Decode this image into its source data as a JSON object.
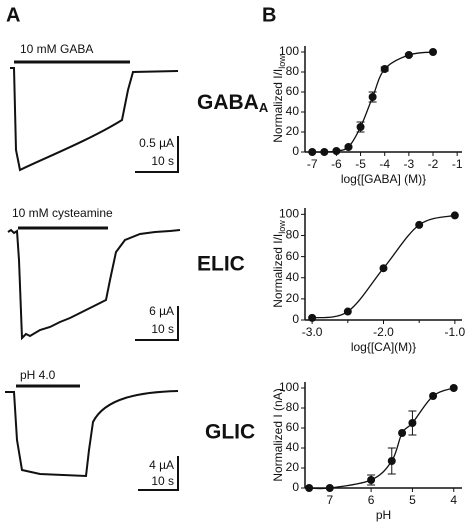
{
  "panels": {
    "a": "A",
    "b": "B"
  },
  "traces": [
    {
      "stimulus": "10 mM GABA",
      "amp": "0.5 µA",
      "time": "10 s",
      "receptor": "GABA",
      "receptor_sub": "A"
    },
    {
      "stimulus": "10 mM cysteamine",
      "amp": "6 µA",
      "time": "10 s",
      "receptor": "ELIC"
    },
    {
      "stimulus": "pH 4.0",
      "amp": "4 µA",
      "time": "10 s",
      "receptor": "GLIC"
    }
  ],
  "chart_data": [
    {
      "type": "scatter",
      "xlabel": "log{[GABA] (M)}",
      "ylabel": "Normalized I/I",
      "ylabel_sub": "low",
      "x": [
        -7,
        -6.5,
        -6,
        -5.5,
        -5,
        -4.5,
        -4,
        -3,
        -2
      ],
      "values": [
        0,
        0,
        1,
        5,
        25,
        55,
        83,
        97,
        100
      ],
      "errors": [
        0,
        0,
        0,
        1,
        5,
        5,
        2,
        1,
        0
      ],
      "xlim": [
        -7.3,
        -0.8
      ],
      "ylim": [
        0,
        106
      ],
      "xticks": [
        -7,
        -6,
        -5,
        -4,
        -3,
        -2,
        -1
      ],
      "yticks": [
        0,
        20,
        40,
        60,
        80,
        100
      ],
      "color": "#111111"
    },
    {
      "type": "scatter",
      "xlabel": "log{[CA](M)}",
      "ylabel": "Normalized I/I",
      "ylabel_sub": "low",
      "x": [
        -3,
        -2.5,
        -2,
        -1.5,
        -1
      ],
      "values": [
        2,
        8,
        49,
        90,
        99
      ],
      "errors": [
        0,
        0,
        0,
        0,
        0
      ],
      "xlim": [
        -3.1,
        -0.9
      ],
      "ylim": [
        0,
        106
      ],
      "xticks": [
        {
          "value": -3,
          "label": "-3.0"
        },
        {
          "value": -2,
          "label": "-2.0"
        },
        {
          "value": -1,
          "label": "-1.0"
        }
      ],
      "xminorticks": [
        -2.5,
        -1.5
      ],
      "yticks": [
        0,
        20,
        40,
        60,
        80,
        100
      ],
      "color": "#111111"
    },
    {
      "type": "scatter",
      "xlabel": "pH",
      "ylabel": "Normalized I (nA)",
      "x": [
        7.5,
        7,
        6,
        5.5,
        5.25,
        5,
        4.5,
        4
      ],
      "values": [
        0,
        0,
        8,
        27,
        55,
        65,
        92,
        100
      ],
      "errors": [
        0,
        0,
        5,
        13,
        0,
        12,
        0,
        0
      ],
      "xlim": [
        7.6,
        3.8
      ],
      "ylim": [
        0,
        106
      ],
      "xticks": [
        7,
        6,
        5,
        4
      ],
      "yticks": [
        0,
        20,
        40,
        60,
        80,
        100
      ],
      "color": "#111111"
    }
  ]
}
